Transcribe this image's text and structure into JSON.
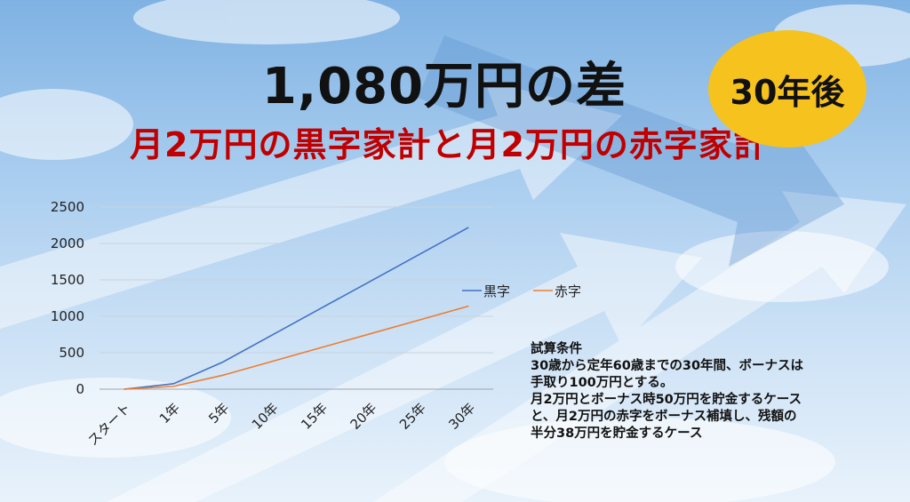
{
  "title": "1,080万円の差",
  "subtitle": "月2万円の黒字家計と月2万円の赤字家計",
  "badge": "30年後",
  "conditions": {
    "heading": "試算条件",
    "lines": [
      "30歳から定年60歳までの30年間、ボーナスは",
      "手取り100万円とする。",
      "月2万円とボーナス時50万円を貯金するケース",
      "と、月2万円の赤字をボーナス補填し、残額の",
      "半分38万円を貯金するケース"
    ]
  },
  "colors": {
    "title": "#111111",
    "subtitle": "#c00000",
    "badge": "#f6c21d",
    "series_black": "#4472c4",
    "series_red": "#ed7d31"
  },
  "chart_data": {
    "type": "line",
    "categories": [
      "スタート",
      "1年",
      "5年",
      "10年",
      "15年",
      "20年",
      "25年",
      "30年"
    ],
    "series": [
      {
        "name": "黒字",
        "values": [
          0,
          74,
          370,
          740,
          1110,
          1480,
          1850,
          2220
        ]
      },
      {
        "name": "赤字",
        "values": [
          0,
          38,
          190,
          380,
          570,
          760,
          950,
          1140
        ]
      }
    ],
    "ylim": [
      0,
      2500
    ],
    "yticks": [
      0,
      500,
      1000,
      1500,
      2000,
      2500
    ],
    "grid": true,
    "legend": "right"
  }
}
